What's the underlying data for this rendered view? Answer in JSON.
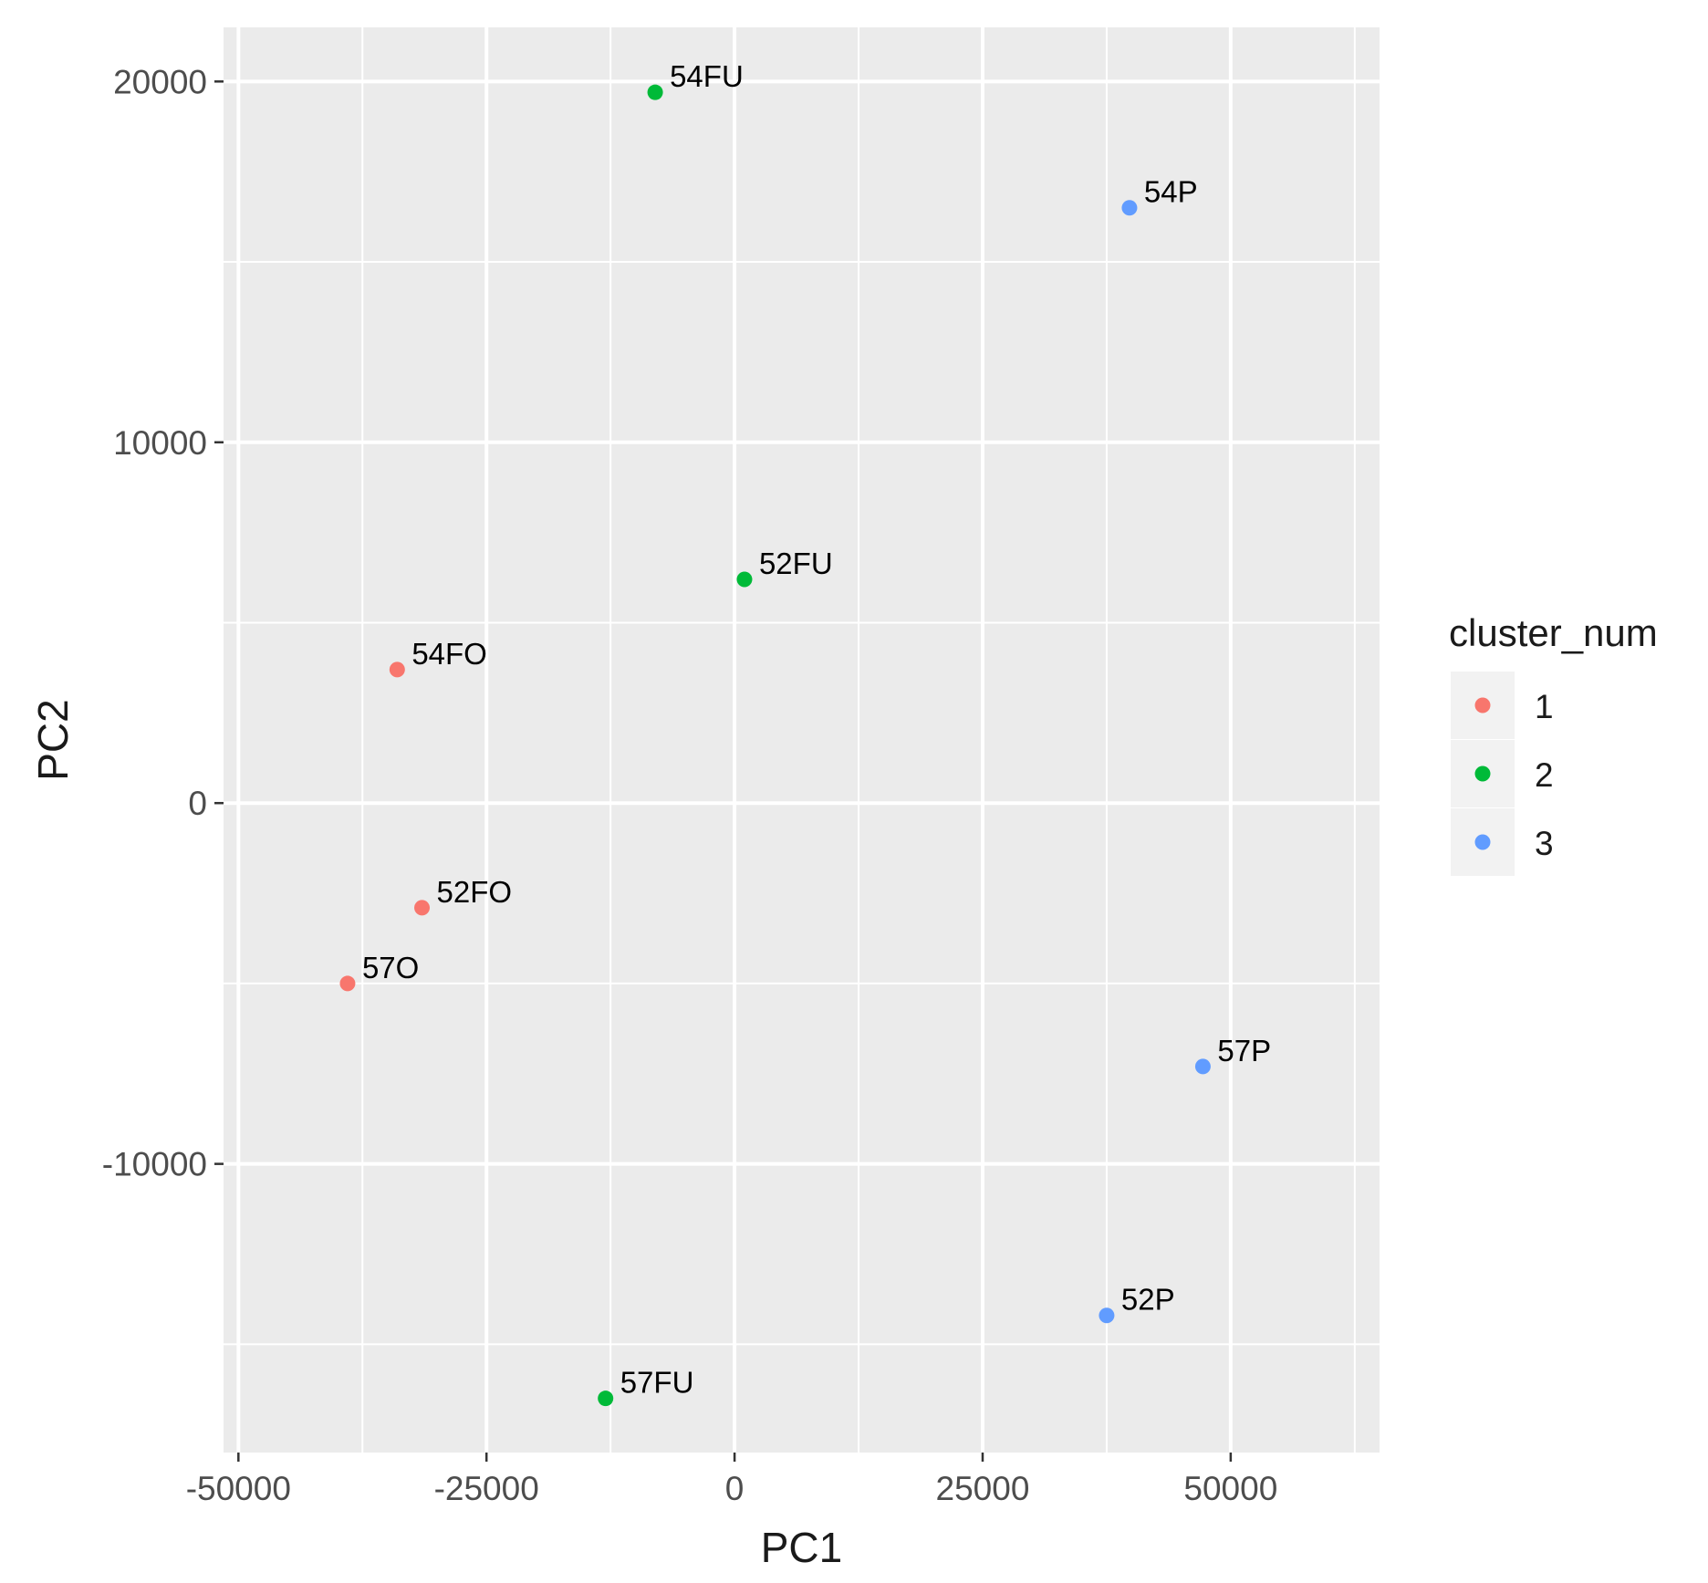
{
  "chart_data": {
    "type": "scatter",
    "xlabel": "PC1",
    "ylabel": "PC2",
    "xlim": [
      -51500,
      65000
    ],
    "ylim": [
      -18000,
      21500
    ],
    "x_ticks": [
      -50000,
      -25000,
      0,
      25000,
      50000
    ],
    "x_tick_labels": [
      "-50000",
      "-25000",
      "0",
      "25000",
      "50000"
    ],
    "y_ticks": [
      -10000,
      0,
      10000,
      20000
    ],
    "y_tick_labels": [
      "-10000",
      "0",
      "10000",
      "20000"
    ],
    "grid": true,
    "panel_background": "#ebebeb",
    "grid_color": "#ffffff",
    "legend": {
      "title": "cluster_num",
      "placement": "right",
      "entries": [
        {
          "label": "1",
          "color": "#F8766D"
        },
        {
          "label": "2",
          "color": "#00BA38"
        },
        {
          "label": "3",
          "color": "#619CFF"
        }
      ]
    },
    "points": [
      {
        "label": "54FU",
        "x": -8000,
        "y": 19700,
        "cluster": "2"
      },
      {
        "label": "54P",
        "x": 39800,
        "y": 16500,
        "cluster": "3"
      },
      {
        "label": "52FU",
        "x": 1000,
        "y": 6200,
        "cluster": "2"
      },
      {
        "label": "54FO",
        "x": -34000,
        "y": 3700,
        "cluster": "1"
      },
      {
        "label": "52FO",
        "x": -31500,
        "y": -2900,
        "cluster": "1"
      },
      {
        "label": "57O",
        "x": -39000,
        "y": -5000,
        "cluster": "1"
      },
      {
        "label": "57P",
        "x": 47200,
        "y": -7300,
        "cluster": "3"
      },
      {
        "label": "52P",
        "x": 37500,
        "y": -14200,
        "cluster": "3"
      },
      {
        "label": "57FU",
        "x": -13000,
        "y": -16500,
        "cluster": "2"
      }
    ]
  }
}
